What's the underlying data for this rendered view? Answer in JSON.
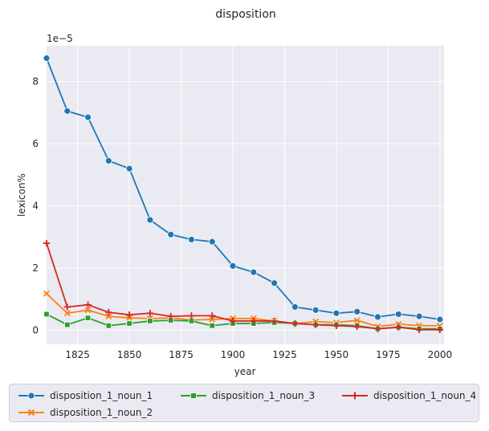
{
  "chart_data": {
    "type": "line",
    "title": "disposition",
    "xlabel": "year",
    "ylabel": "lexicon%",
    "y_multiplier_label": "1e−5",
    "xlim": [
      1810,
      2002
    ],
    "ylim": [
      -0.45,
      9.15
    ],
    "x_ticks": [
      1825,
      1850,
      1875,
      1900,
      1925,
      1950,
      1975,
      2000
    ],
    "y_ticks": [
      0,
      2,
      4,
      6,
      8
    ],
    "x": [
      1810,
      1820,
      1830,
      1840,
      1850,
      1860,
      1870,
      1880,
      1890,
      1900,
      1910,
      1920,
      1930,
      1940,
      1950,
      1960,
      1970,
      1980,
      1990,
      2000
    ],
    "series": [
      {
        "name": "disposition_1_noun_1",
        "color": "#1f77b4",
        "marker": "circle",
        "values": [
          8.75,
          7.05,
          6.85,
          5.45,
          5.2,
          3.55,
          3.08,
          2.92,
          2.85,
          2.07,
          1.87,
          1.52,
          0.75,
          0.65,
          0.55,
          0.6,
          0.43,
          0.52,
          0.45,
          0.35
        ]
      },
      {
        "name": "disposition_1_noun_2",
        "color": "#ff7f0e",
        "marker": "x",
        "values": [
          1.18,
          0.55,
          0.65,
          0.45,
          0.4,
          0.38,
          0.4,
          0.33,
          0.35,
          0.38,
          0.38,
          0.3,
          0.22,
          0.28,
          0.25,
          0.32,
          0.12,
          0.2,
          0.15,
          0.15
        ]
      },
      {
        "name": "disposition_1_noun_3",
        "color": "#2ca02c",
        "marker": "square",
        "values": [
          0.52,
          0.18,
          0.4,
          0.15,
          0.22,
          0.3,
          0.32,
          0.3,
          0.15,
          0.22,
          0.22,
          0.25,
          0.22,
          0.18,
          0.18,
          0.15,
          0.05,
          0.1,
          0.05,
          0.05
        ]
      },
      {
        "name": "disposition_1_noun_4",
        "color": "#d62728",
        "marker": "plus",
        "values": [
          2.8,
          0.75,
          0.82,
          0.58,
          0.5,
          0.55,
          0.45,
          0.47,
          0.47,
          0.3,
          0.3,
          0.3,
          0.22,
          0.18,
          0.15,
          0.12,
          0.05,
          0.1,
          0.02,
          0.02
        ]
      }
    ],
    "grid": true,
    "legend_position": "bottom-outside"
  }
}
